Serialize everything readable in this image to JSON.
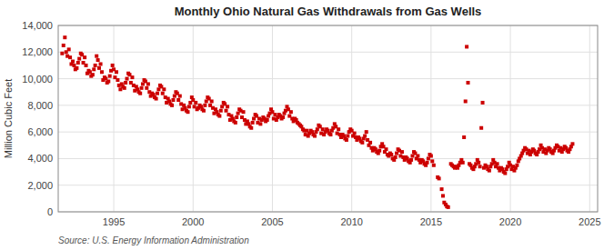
{
  "chart_data": {
    "type": "scatter",
    "title": "Monthly Ohio Natural Gas Withdrawals from Gas Wells",
    "ylabel": "Million Cubic Feet",
    "source": "Source: U.S. Energy Information Administration",
    "color": "#cc0000",
    "marker": "square",
    "grid": true,
    "xlim": [
      1991.5,
      2025.5
    ],
    "ylim": [
      0,
      14000
    ],
    "xticks": [
      1995,
      2000,
      2005,
      2010,
      2015,
      2020,
      2025
    ],
    "yticks": [
      0,
      {
        "value": 2000,
        "label": "2,000"
      },
      {
        "value": 4000,
        "label": "4,000"
      },
      {
        "value": 6000,
        "label": "6,000"
      },
      {
        "value": 8000,
        "label": "8,000"
      },
      {
        "value": 10000,
        "label": "10,000"
      },
      {
        "value": 12000,
        "label": "12,000"
      },
      {
        "value": 14000,
        "label": "14,000"
      }
    ],
    "x": [
      1991.75,
      1991.83,
      1991.92,
      1992.0,
      1992.08,
      1992.17,
      1992.25,
      1992.33,
      1992.42,
      1992.5,
      1992.58,
      1992.67,
      1992.75,
      1992.83,
      1992.92,
      1993.0,
      1993.08,
      1993.17,
      1993.25,
      1993.33,
      1993.42,
      1993.5,
      1993.58,
      1993.67,
      1993.75,
      1993.83,
      1993.92,
      1994.0,
      1994.08,
      1994.17,
      1994.25,
      1994.33,
      1994.42,
      1994.5,
      1994.58,
      1994.67,
      1994.75,
      1994.83,
      1994.92,
      1995.0,
      1995.08,
      1995.17,
      1995.25,
      1995.33,
      1995.42,
      1995.5,
      1995.58,
      1995.67,
      1995.75,
      1995.83,
      1995.92,
      1996.0,
      1996.08,
      1996.17,
      1996.25,
      1996.33,
      1996.42,
      1996.5,
      1996.58,
      1996.67,
      1996.75,
      1996.83,
      1996.92,
      1997.0,
      1997.08,
      1997.17,
      1997.25,
      1997.33,
      1997.42,
      1997.5,
      1997.58,
      1997.67,
      1997.75,
      1997.83,
      1997.92,
      1998.0,
      1998.08,
      1998.17,
      1998.25,
      1998.33,
      1998.42,
      1998.5,
      1998.58,
      1998.67,
      1998.75,
      1998.83,
      1998.92,
      1999.0,
      1999.08,
      1999.17,
      1999.25,
      1999.33,
      1999.42,
      1999.5,
      1999.58,
      1999.67,
      1999.75,
      1999.83,
      1999.92,
      2000.0,
      2000.08,
      2000.17,
      2000.25,
      2000.33,
      2000.42,
      2000.5,
      2000.58,
      2000.67,
      2000.75,
      2000.83,
      2000.92,
      2001.0,
      2001.08,
      2001.17,
      2001.25,
      2001.33,
      2001.42,
      2001.5,
      2001.58,
      2001.67,
      2001.75,
      2001.83,
      2001.92,
      2002.0,
      2002.08,
      2002.17,
      2002.25,
      2002.33,
      2002.42,
      2002.5,
      2002.58,
      2002.67,
      2002.75,
      2002.83,
      2002.92,
      2003.0,
      2003.08,
      2003.17,
      2003.25,
      2003.33,
      2003.42,
      2003.5,
      2003.58,
      2003.67,
      2003.75,
      2003.83,
      2003.92,
      2004.0,
      2004.08,
      2004.17,
      2004.25,
      2004.33,
      2004.42,
      2004.5,
      2004.58,
      2004.67,
      2004.75,
      2004.83,
      2004.92,
      2005.0,
      2005.08,
      2005.17,
      2005.25,
      2005.33,
      2005.42,
      2005.5,
      2005.58,
      2005.67,
      2005.75,
      2005.83,
      2005.92,
      2006.0,
      2006.08,
      2006.17,
      2006.25,
      2006.33,
      2006.42,
      2006.5,
      2006.58,
      2006.67,
      2006.75,
      2006.83,
      2006.92,
      2007.0,
      2007.08,
      2007.17,
      2007.25,
      2007.33,
      2007.42,
      2007.5,
      2007.58,
      2007.67,
      2007.75,
      2007.83,
      2007.92,
      2008.0,
      2008.08,
      2008.17,
      2008.25,
      2008.33,
      2008.42,
      2008.5,
      2008.58,
      2008.67,
      2008.75,
      2008.83,
      2008.92,
      2009.0,
      2009.08,
      2009.17,
      2009.25,
      2009.33,
      2009.42,
      2009.5,
      2009.58,
      2009.67,
      2009.75,
      2009.83,
      2009.92,
      2010.0,
      2010.08,
      2010.17,
      2010.25,
      2010.33,
      2010.42,
      2010.5,
      2010.58,
      2010.67,
      2010.75,
      2010.83,
      2010.92,
      2011.0,
      2011.08,
      2011.17,
      2011.25,
      2011.33,
      2011.42,
      2011.5,
      2011.58,
      2011.67,
      2011.75,
      2011.83,
      2011.92,
      2012.0,
      2012.08,
      2012.17,
      2012.25,
      2012.33,
      2012.42,
      2012.5,
      2012.58,
      2012.67,
      2012.75,
      2012.83,
      2012.92,
      2013.0,
      2013.08,
      2013.17,
      2013.25,
      2013.33,
      2013.42,
      2013.5,
      2013.58,
      2013.67,
      2013.75,
      2013.83,
      2013.92,
      2014.0,
      2014.08,
      2014.17,
      2014.25,
      2014.33,
      2014.42,
      2014.5,
      2014.58,
      2014.67,
      2014.75,
      2014.83,
      2014.92,
      2015.0,
      2015.08,
      2015.17,
      2015.42,
      2015.5,
      2015.67,
      2015.75,
      2015.83,
      2015.92,
      2016.0,
      2016.08,
      2016.25,
      2016.33,
      2016.42,
      2016.5,
      2016.58,
      2016.67,
      2016.75,
      2016.83,
      2016.92,
      2017.0,
      2017.08,
      2017.17,
      2017.25,
      2017.33,
      2017.42,
      2017.5,
      2017.58,
      2017.67,
      2017.75,
      2017.83,
      2017.92,
      2018.0,
      2018.08,
      2018.17,
      2018.25,
      2018.33,
      2018.42,
      2018.5,
      2018.58,
      2018.67,
      2018.75,
      2018.83,
      2018.92,
      2019.0,
      2019.08,
      2019.17,
      2019.25,
      2019.33,
      2019.42,
      2019.5,
      2019.58,
      2019.67,
      2019.75,
      2019.83,
      2019.92,
      2020.0,
      2020.08,
      2020.17,
      2020.25,
      2020.33,
      2020.42,
      2020.5,
      2020.58,
      2020.67,
      2020.75,
      2020.83,
      2020.92,
      2021.0,
      2021.08,
      2021.17,
      2021.25,
      2021.33,
      2021.42,
      2021.5,
      2021.58,
      2021.67,
      2021.75,
      2021.83,
      2021.92,
      2022.0,
      2022.08,
      2022.17,
      2022.25,
      2022.33,
      2022.42,
      2022.5,
      2022.58,
      2022.67,
      2022.75,
      2022.83,
      2022.92,
      2023.0,
      2023.08,
      2023.17,
      2023.25,
      2023.33,
      2023.42,
      2023.5,
      2023.58,
      2023.67,
      2023.75,
      2023.83,
      2023.92
    ],
    "values": [
      11900,
      12500,
      13100,
      12000,
      11700,
      12200,
      11600,
      11100,
      11300,
      11000,
      10700,
      10800,
      11200,
      11500,
      11900,
      11800,
      11200,
      11600,
      11000,
      10400,
      10600,
      10500,
      10200,
      10300,
      10700,
      11000,
      11700,
      11400,
      10800,
      11100,
      10500,
      9900,
      10100,
      10000,
      9700,
      9800,
      10200,
      10600,
      11000,
      10700,
      10100,
      10500,
      9900,
      9500,
      9200,
      9600,
      9400,
      9300,
      9700,
      10000,
      10400,
      10300,
      9700,
      10100,
      9500,
      9100,
      9400,
      9200,
      9000,
      8900,
      9300,
      9600,
      9900,
      9800,
      9300,
      9600,
      9000,
      8700,
      8900,
      8800,
      8600,
      8500,
      8900,
      9200,
      9500,
      9400,
      8900,
      9200,
      8600,
      8200,
      8500,
      8300,
      8100,
      8000,
      8400,
      8700,
      9000,
      8900,
      8400,
      8700,
      8100,
      7700,
      8000,
      7800,
      7600,
      7500,
      7900,
      8200,
      8600,
      8400,
      7900,
      8200,
      7700,
      7800,
      8000,
      7900,
      7700,
      7600,
      8000,
      8300,
      8600,
      8500,
      8000,
      8300,
      7800,
      7400,
      7700,
      7500,
      7300,
      7200,
      7600,
      7900,
      8200,
      8100,
      7600,
      7900,
      7300,
      6900,
      7200,
      7000,
      6800,
      6700,
      7100,
      7400,
      7700,
      7600,
      7100,
      7500,
      6900,
      6600,
      6800,
      6600,
      6400,
      6300,
      6700,
      7000,
      7300,
      7200,
      6700,
      7000,
      6600,
      6900,
      7100,
      7000,
      6800,
      6900,
      7200,
      7400,
      7700,
      7500,
      7000,
      7300,
      6900,
      7100,
      7300,
      7200,
      7000,
      7100,
      7400,
      7600,
      7900,
      7700,
      7200,
      7500,
      7000,
      6800,
      7000,
      6900,
      6700,
      6600,
      6500,
      6400,
      6200,
      6100,
      5800,
      6100,
      5700,
      5900,
      6100,
      6000,
      5800,
      5700,
      6000,
      6200,
      6500,
      6400,
      5900,
      6200,
      5800,
      6000,
      6200,
      6100,
      5900,
      5800,
      6100,
      6300,
      6600,
      6400,
      5900,
      6200,
      5800,
      5600,
      5800,
      5700,
      5500,
      5400,
      5700,
      6000,
      6200,
      6100,
      5700,
      5900,
      5600,
      5400,
      5600,
      5500,
      5300,
      5200,
      5500,
      5700,
      6000,
      5400,
      5000,
      5200,
      4800,
      4600,
      4800,
      4700,
      4500,
      4400,
      4600,
      4900,
      5100,
      4900,
      4500,
      4700,
      4300,
      4200,
      4400,
      4300,
      4000,
      3900,
      4100,
      4400,
      4700,
      4600,
      4200,
      4500,
      4100,
      3900,
      4100,
      4000,
      3800,
      3700,
      3900,
      4200,
      4500,
      4400,
      4000,
      4200,
      3900,
      3700,
      3900,
      3800,
      3600,
      3500,
      3700,
      4000,
      4300,
      4200,
      3800,
      3500,
      2600,
      2500,
      1700,
      1200,
      700,
      550,
      400,
      350,
      3600,
      3500,
      3400,
      3300,
      3400,
      3300,
      3500,
      3700,
      3900,
      3700,
      5600,
      8300,
      12400,
      9700,
      3600,
      3500,
      3300,
      3200,
      3400,
      3600,
      3900,
      3700,
      3400,
      6300,
      8200,
      3300,
      3500,
      3400,
      3200,
      3100,
      3400,
      3600,
      3900,
      3700,
      3400,
      3600,
      3300,
      3100,
      3300,
      3200,
      3000,
      2900,
      3200,
      3400,
      3700,
      3500,
      3200,
      3400,
      3100,
      3300,
      3500,
      3800,
      4000,
      4200,
      4400,
      4600,
      4800,
      4700,
      4400,
      4600,
      4300,
      4500,
      4700,
      4600,
      4400,
      4300,
      4500,
      4700,
      5000,
      4800,
      4500,
      4700,
      4400,
      4600,
      4800,
      4700,
      4500,
      4400,
      4600,
      4800,
      5000,
      4900,
      4600,
      4800,
      4500,
      4700,
      4900,
      4800,
      4600,
      4500,
      4700,
      4900,
      5100
    ]
  }
}
